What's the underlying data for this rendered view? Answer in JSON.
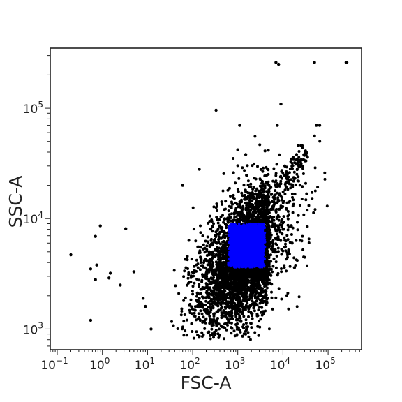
{
  "chart_data": {
    "type": "scatter",
    "title": "",
    "xlabel": "FSC-A",
    "ylabel": "SSC-A",
    "x_scale": "log",
    "y_scale": "log",
    "xlim": [
      0.07,
      550000
    ],
    "ylim": [
      650,
      350000
    ],
    "grid": false,
    "legend": "none",
    "x_ticks": [
      {
        "value": 0.1,
        "base": "10",
        "exp": "−1"
      },
      {
        "value": 1,
        "base": "10",
        "exp": "0"
      },
      {
        "value": 10,
        "base": "10",
        "exp": "1"
      },
      {
        "value": 100,
        "base": "10",
        "exp": "2"
      },
      {
        "value": 1000,
        "base": "10",
        "exp": "3"
      },
      {
        "value": 10000,
        "base": "10",
        "exp": "4"
      },
      {
        "value": 100000,
        "base": "10",
        "exp": "5"
      }
    ],
    "y_ticks": [
      {
        "value": 1000,
        "base": "10",
        "exp": "3"
      },
      {
        "value": 10000,
        "base": "10",
        "exp": "4"
      },
      {
        "value": 100000,
        "base": "10",
        "exp": "5"
      }
    ],
    "series": [
      {
        "color": "#000000",
        "outlier_points": [
          [
            0.2,
            4700
          ],
          [
            0.55,
            1200
          ],
          [
            0.55,
            3500
          ],
          [
            0.7,
            2800
          ],
          [
            0.7,
            6900
          ],
          [
            0.75,
            3800
          ],
          [
            0.9,
            8600
          ],
          [
            1.4,
            2900
          ],
          [
            1.5,
            3200
          ],
          [
            2.5,
            2500
          ],
          [
            3.3,
            8100
          ],
          [
            5,
            3300
          ],
          [
            8,
            1900
          ],
          [
            9,
            1600
          ],
          [
            12,
            1000
          ],
          [
            60,
            20000
          ],
          [
            140,
            28000
          ],
          [
            330,
            96000
          ],
          [
            800,
            26000
          ],
          [
            1000,
            42000
          ],
          [
            1100,
            70000
          ],
          [
            1500,
            38000
          ],
          [
            7000,
            260000
          ],
          [
            8000,
            250000
          ],
          [
            9000,
            109000
          ],
          [
            7500,
            70000
          ],
          [
            4000,
            41000
          ],
          [
            11000,
            30000
          ],
          [
            16000,
            6000
          ],
          [
            18000,
            3600
          ],
          [
            20000,
            38000
          ],
          [
            25000,
            46000
          ],
          [
            35000,
            36000
          ],
          [
            50000,
            260000
          ],
          [
            50000,
            56000
          ],
          [
            55000,
            70000
          ],
          [
            65000,
            70000
          ],
          [
            250000,
            260000
          ],
          [
            260000,
            260000
          ]
        ],
        "density": {
          "center": [
            1800,
            4800
          ],
          "spread_log10": [
            0.55,
            0.32
          ],
          "count": 5200
        }
      },
      {
        "color": "#0000ff",
        "gate_region": {
          "x": [
            650,
            3800
          ],
          "y": [
            3700,
            8800
          ]
        }
      }
    ]
  }
}
